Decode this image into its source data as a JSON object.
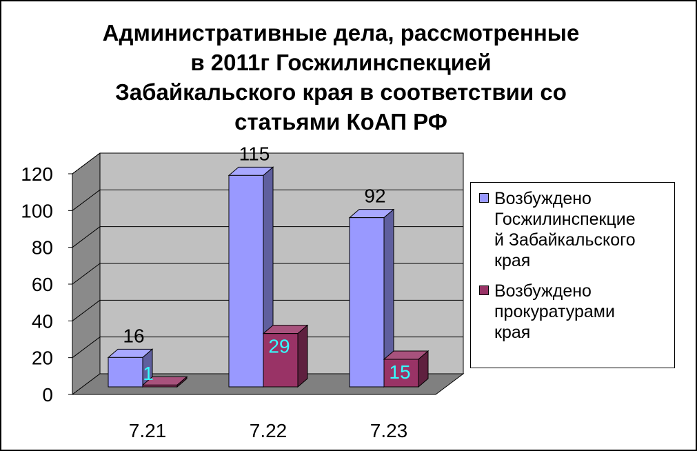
{
  "chart_data": {
    "type": "bar",
    "title_lines": [
      "Административные дела, рассмотренные",
      "в 2011г Госжилинспекцией",
      "Забайкальского края в соответствии со",
      "статьями КоАП РФ"
    ],
    "categories": [
      "7.21",
      "7.22",
      "7.23"
    ],
    "series": [
      {
        "name": "Возбуждено Госжилинспекцией Забайкальского края",
        "legend_lines": [
          "Возбуждено",
          "Госжилинспекцие",
          "й Забайкальского",
          "края"
        ],
        "values": [
          16,
          115,
          92
        ],
        "color": "#9999ff",
        "label_color": "#000000"
      },
      {
        "name": "Возбуждено прокуратурами края",
        "legend_lines": [
          "Возбуждено",
          "прокуратурами",
          "края"
        ],
        "values": [
          1,
          29,
          15
        ],
        "color": "#993366",
        "label_color": "#33ffff"
      }
    ],
    "ylim": [
      0,
      120
    ],
    "yticks": [
      "0",
      "20",
      "40",
      "60",
      "80",
      "100",
      "120"
    ],
    "grid": true,
    "legend_position": "right",
    "style": "3d-clustered-column",
    "wall_color": "#c0c0c0",
    "floor_color": "#808080"
  }
}
